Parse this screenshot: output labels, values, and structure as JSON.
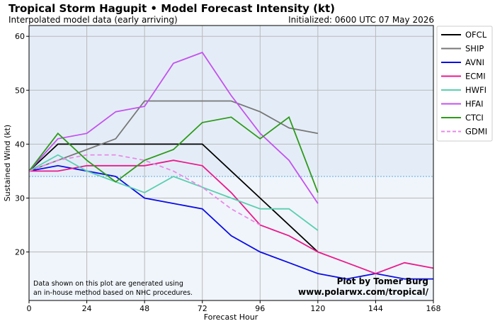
{
  "header": {
    "title": "Tropical Storm Hagupit • Model Forecast Intensity (kt)",
    "subtitle": "Interpolated model data (early arriving)",
    "initialized": "Initialized: 0600 UTC 07 May 2026"
  },
  "notes": {
    "line1": "Data shown on this plot are generated using",
    "line2": "an in-house method based on NHC procedures.",
    "credit1": "Plot by Tomer Burg",
    "credit2": "www.polarwx.com/tropical/"
  },
  "colors": {
    "background_upper": "#e4edf7",
    "background_lower": "#f0f5fb",
    "threshold_line": "#5ea9e6"
  },
  "chart_data": {
    "type": "line",
    "xlabel": "Forecast Hour",
    "ylabel": "Sustained Wind (kt)",
    "xlim": [
      0,
      168
    ],
    "ylim": [
      11,
      62
    ],
    "xticks": [
      0,
      24,
      48,
      72,
      96,
      120,
      144,
      168
    ],
    "yticks": [
      20,
      30,
      40,
      50,
      60
    ],
    "threshold": 34,
    "grid": true,
    "legend_position": "right-outside",
    "series": [
      {
        "name": "OFCL",
        "color": "#000000",
        "dash": false,
        "x": [
          0,
          12,
          24,
          36,
          48,
          60,
          72,
          96,
          120
        ],
        "y": [
          35,
          40,
          40,
          40,
          40,
          40,
          40,
          30,
          20
        ]
      },
      {
        "name": "SHIP",
        "color": "#777777",
        "dash": false,
        "x": [
          0,
          12,
          24,
          36,
          48,
          60,
          72,
          84,
          96,
          108,
          120
        ],
        "y": [
          35,
          37,
          39,
          41,
          48,
          48,
          48,
          48,
          46,
          43,
          42
        ]
      },
      {
        "name": "AVNI",
        "color": "#0c0ce6",
        "dash": false,
        "x": [
          0,
          12,
          24,
          36,
          48,
          60,
          72,
          84,
          96,
          108,
          120,
          132,
          144,
          156,
          168
        ],
        "y": [
          35,
          36,
          35,
          34,
          30,
          29,
          28,
          23,
          20,
          18,
          16,
          15,
          16,
          15,
          15
        ]
      },
      {
        "name": "ECMI",
        "color": "#ea1a8c",
        "dash": false,
        "x": [
          0,
          12,
          24,
          36,
          48,
          60,
          72,
          84,
          96,
          108,
          120,
          132,
          144,
          156,
          168
        ],
        "y": [
          35,
          35,
          36,
          36,
          36,
          37,
          36,
          31,
          25,
          23,
          20,
          18,
          16,
          18,
          17
        ]
      },
      {
        "name": "HWFI",
        "color": "#5acfb0",
        "dash": false,
        "x": [
          0,
          12,
          24,
          36,
          48,
          60,
          72,
          84,
          96,
          108,
          120
        ],
        "y": [
          35,
          38,
          35,
          33,
          31,
          34,
          32,
          30,
          28,
          28,
          24
        ]
      },
      {
        "name": "HFAI",
        "color": "#c452f0",
        "dash": false,
        "x": [
          0,
          12,
          24,
          36,
          48,
          60,
          72,
          84,
          96,
          108,
          120
        ],
        "y": [
          35,
          41,
          42,
          46,
          47,
          55,
          57,
          49,
          42,
          37,
          29
        ]
      },
      {
        "name": "CTCI",
        "color": "#2e9a1a",
        "dash": false,
        "x": [
          0,
          12,
          24,
          36,
          48,
          60,
          72,
          84,
          96,
          108,
          120
        ],
        "y": [
          35,
          42,
          37,
          33,
          37,
          39,
          44,
          45,
          41,
          45,
          31
        ]
      },
      {
        "name": "GDMI",
        "color": "#e88ae8",
        "dash": true,
        "x": [
          0,
          12,
          24,
          36,
          48,
          60,
          72,
          84,
          96
        ],
        "y": [
          35,
          37,
          38,
          38,
          37,
          35,
          32,
          28,
          25
        ]
      }
    ]
  }
}
